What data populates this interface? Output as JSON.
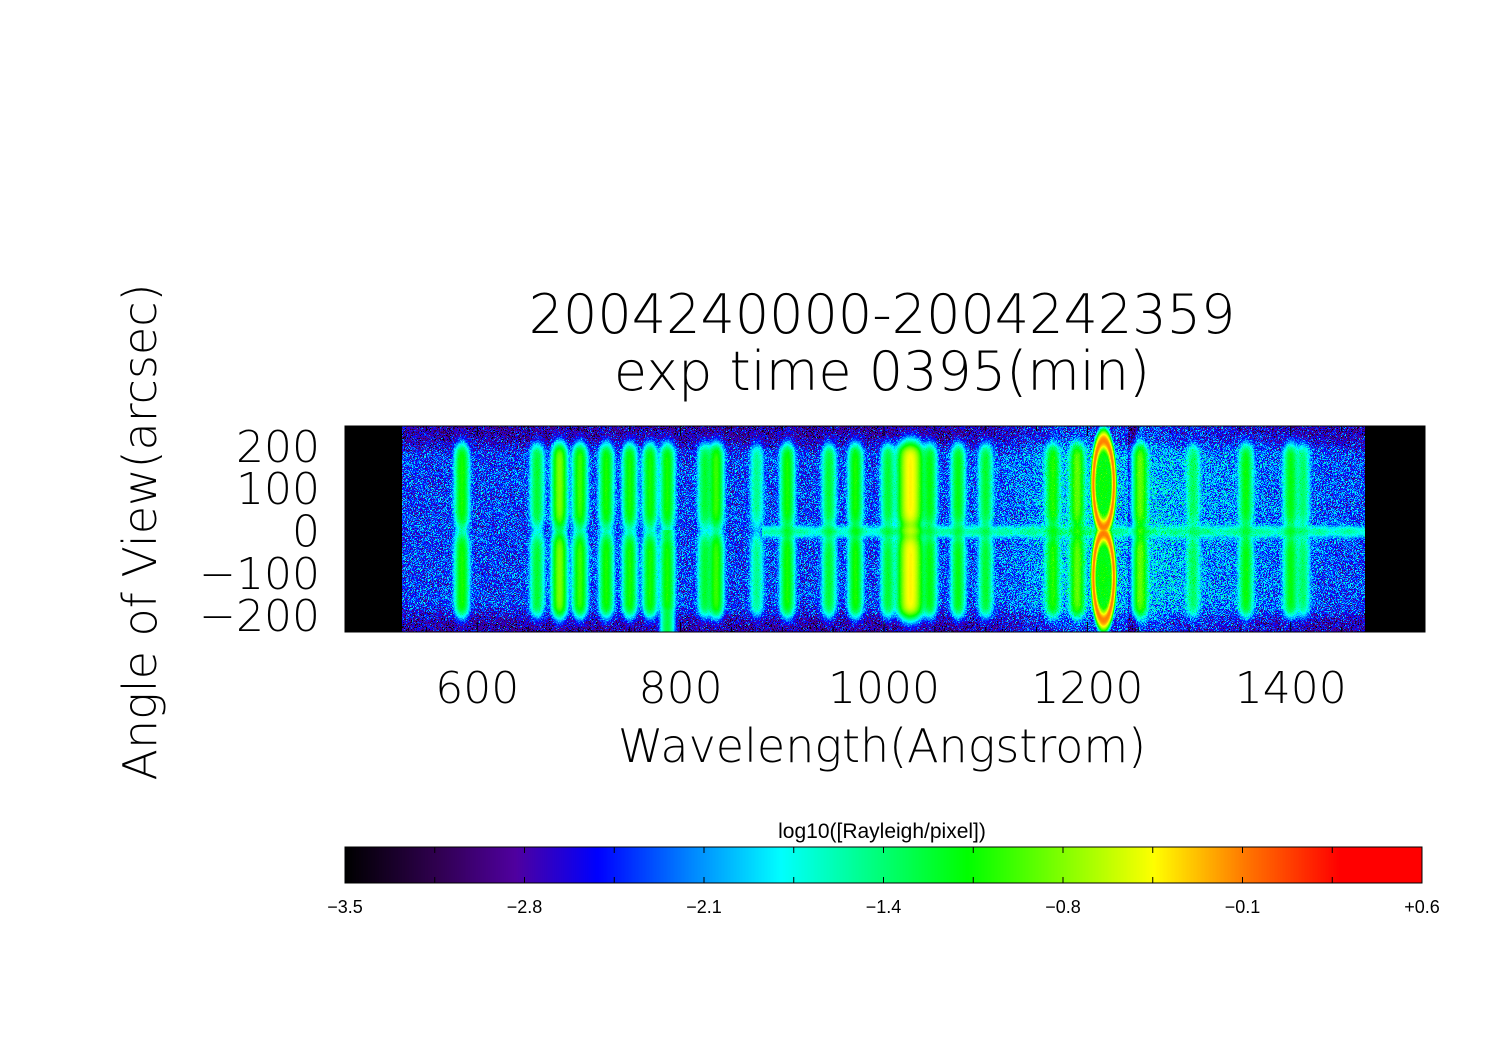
{
  "chart_data": {
    "type": "heatmap",
    "title": [
      "2004240000-2004242359",
      "exp time 0395(min)"
    ],
    "xlabel": "Wavelength(Angstrom)",
    "ylabel": "Angle of View(arcsec)",
    "xlim": [
      470,
      1532
    ],
    "ylim": [
      -240,
      247
    ],
    "xticks": [
      600,
      800,
      1000,
      1200,
      1400
    ],
    "xtick_labels": [
      "600",
      "800",
      "1000",
      "1200",
      "1400"
    ],
    "yticks": [
      200,
      100,
      0,
      -100,
      -200
    ],
    "ytick_labels": [
      "200",
      "100",
      "0",
      "−100",
      "−200"
    ],
    "data_coverage_wavelength": [
      526,
      1473
    ],
    "background_log_level": -2.4,
    "emission_lines": [
      {
        "wavelength": 585,
        "peak": -1.1
      },
      {
        "wavelength": 659,
        "peak": -1.3
      },
      {
        "wavelength": 681,
        "peak": -0.8
      },
      {
        "wavelength": 701,
        "peak": -1.0
      },
      {
        "wavelength": 727,
        "peak": -1.1
      },
      {
        "wavelength": 750,
        "peak": -1.1
      },
      {
        "wavelength": 770,
        "peak": -1.1
      },
      {
        "wavelength": 787,
        "peak": -1.1
      },
      {
        "wavelength": 824,
        "peak": -1.3
      },
      {
        "wavelength": 835,
        "peak": -1.0
      },
      {
        "wavelength": 875,
        "peak": -1.6
      },
      {
        "wavelength": 905,
        "peak": -1.1
      },
      {
        "wavelength": 946,
        "peak": -1.3
      },
      {
        "wavelength": 972,
        "peak": -1.1
      },
      {
        "wavelength": 1004,
        "peak": -1.3
      },
      {
        "wavelength": 1026,
        "peak": -0.4
      },
      {
        "wavelength": 1045,
        "peak": -1.2
      },
      {
        "wavelength": 1073,
        "peak": -1.2
      },
      {
        "wavelength": 1100,
        "peak": -1.3
      },
      {
        "wavelength": 1166,
        "peak": -1.1
      },
      {
        "wavelength": 1190,
        "peak": -0.9
      },
      {
        "wavelength": 1216,
        "peak": -0.1
      },
      {
        "wavelength": 1252,
        "peak": -0.9
      },
      {
        "wavelength": 1304,
        "peak": -1.5
      },
      {
        "wavelength": 1356,
        "peak": -1.2
      },
      {
        "wavelength": 1400,
        "peak": -1.2
      },
      {
        "wavelength": 1412,
        "peak": -1.5
      }
    ],
    "colorbar": {
      "label": "log10([Rayleigh/pixel])",
      "range": [
        -3.5,
        0.6
      ],
      "tick_labels": [
        "−3.5",
        "−2.8",
        "−2.1",
        "−1.4",
        "−0.8",
        "−0.1",
        "+0.6"
      ],
      "colormap": [
        {
          "v": -3.5,
          "c": "#000000"
        },
        {
          "v": -3.15,
          "c": "#300050"
        },
        {
          "v": -2.85,
          "c": "#5000a0"
        },
        {
          "v": -2.54,
          "c": "#0000ff"
        },
        {
          "v": -2.2,
          "c": "#0080ff"
        },
        {
          "v": -1.84,
          "c": "#00ffff"
        },
        {
          "v": -1.13,
          "c": "#00ff00"
        },
        {
          "v": -0.42,
          "c": "#ffff00"
        },
        {
          "v": -0.05,
          "c": "#ff7000"
        },
        {
          "v": 0.29,
          "c": "#ff0000"
        },
        {
          "v": 0.6,
          "c": "#ff0000"
        }
      ]
    }
  }
}
